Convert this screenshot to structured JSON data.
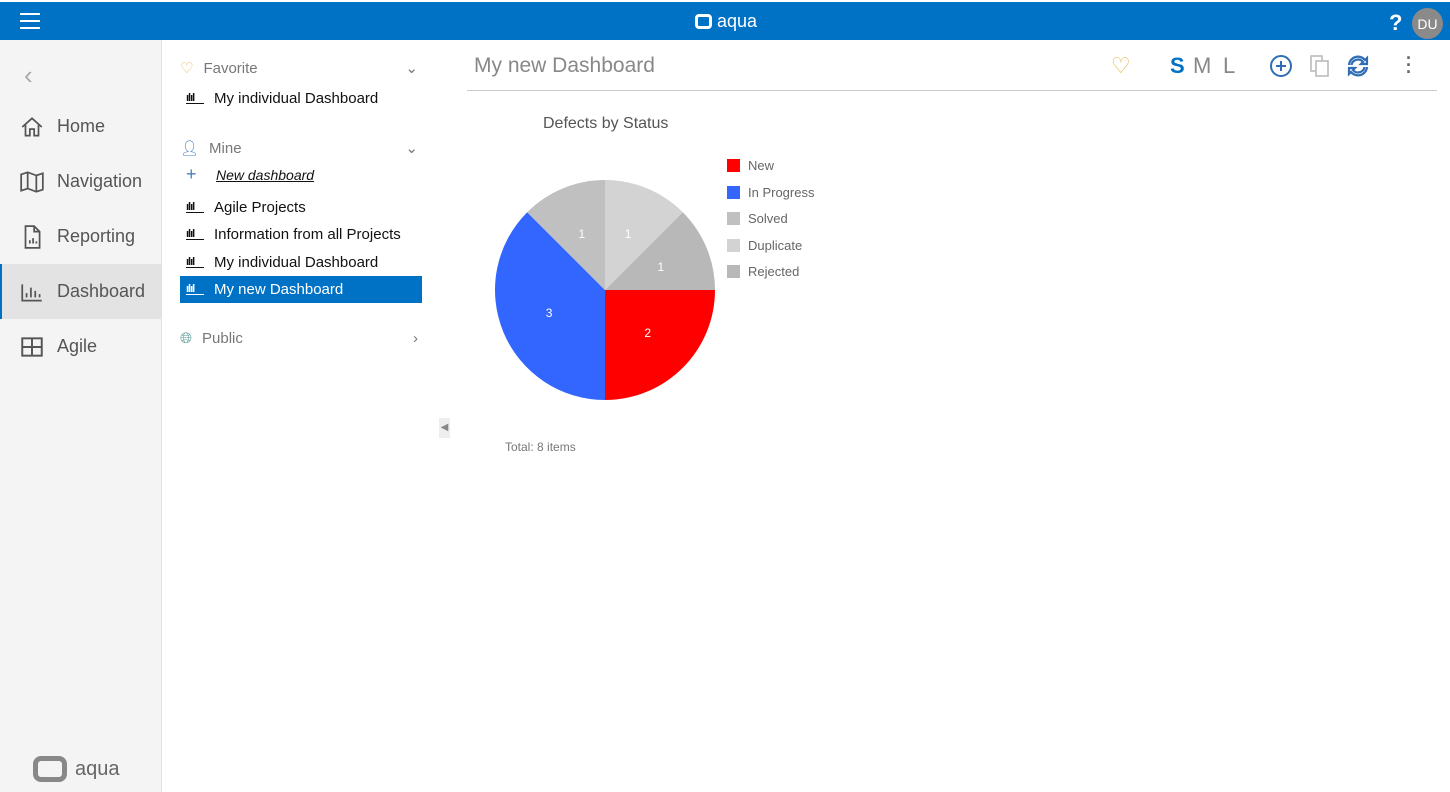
{
  "topbar": {
    "brand": "aqua",
    "help": "?",
    "avatar": "DU"
  },
  "sidebar": {
    "items": [
      {
        "label": "Home",
        "icon": "home-icon"
      },
      {
        "label": "Navigation",
        "icon": "map-icon"
      },
      {
        "label": "Reporting",
        "icon": "report-icon"
      },
      {
        "label": "Dashboard",
        "icon": "dashboard-icon",
        "active": true
      },
      {
        "label": "Agile",
        "icon": "grid-icon"
      }
    ],
    "logo": "aqua"
  },
  "panel": {
    "favorite": {
      "label": "Favorite",
      "items": [
        "My individual Dashboard"
      ]
    },
    "mine": {
      "label": "Mine",
      "new": "New dashboard",
      "items": [
        "Agile Projects",
        "Information from all Projects",
        "My individual Dashboard",
        "My new Dashboard"
      ],
      "selected": "My new Dashboard"
    },
    "public": {
      "label": "Public"
    }
  },
  "main": {
    "title": "My new Dashboard",
    "sizes": [
      "S",
      "M",
      "L"
    ],
    "active_size": "S",
    "accent": "#0072c6"
  },
  "chart_data": {
    "type": "pie",
    "title": "Defects by Status",
    "categories": [
      "New",
      "In Progress",
      "Solved",
      "Duplicate",
      "Rejected"
    ],
    "values": [
      2,
      3,
      1,
      1,
      1
    ],
    "colors": [
      "#ff0000",
      "#3366ff",
      "#c0c0c0",
      "#d3d3d3",
      "#b8b8b8"
    ],
    "legend": "right",
    "footer": "Total: 8 items"
  }
}
